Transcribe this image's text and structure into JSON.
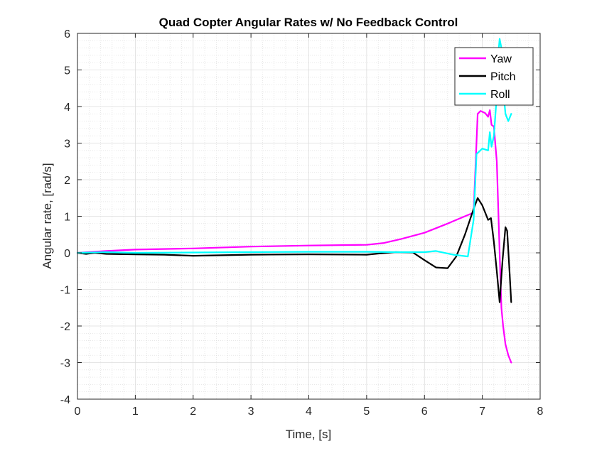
{
  "chart_data": {
    "type": "line",
    "title": "Quad Copter Angular Rates w/ No Feedback Control",
    "xlabel": "Time, [s]",
    "ylabel": "Angular rate, [rad/s]",
    "xlim": [
      0,
      8
    ],
    "ylim": [
      -4,
      6
    ],
    "xticks": [
      0,
      1,
      2,
      3,
      4,
      5,
      6,
      7,
      8
    ],
    "yticks": [
      -4,
      -3,
      -2,
      -1,
      0,
      1,
      2,
      3,
      4,
      5,
      6
    ],
    "grid": true,
    "minor_grid": true,
    "legend_position": "top-right",
    "series": [
      {
        "name": "Yaw",
        "color": "#ff00ff",
        "x": [
          0,
          0.5,
          1,
          2,
          3,
          4,
          5,
          5.3,
          5.6,
          6.0,
          6.4,
          6.7,
          6.85,
          6.92,
          6.97,
          7.05,
          7.1,
          7.13,
          7.16,
          7.2,
          7.25,
          7.3,
          7.33,
          7.36,
          7.4,
          7.45,
          7.5
        ],
        "y": [
          0,
          0.05,
          0.09,
          0.12,
          0.17,
          0.2,
          0.22,
          0.27,
          0.38,
          0.55,
          0.8,
          1.0,
          1.1,
          3.8,
          3.88,
          3.82,
          3.72,
          3.9,
          3.5,
          3.45,
          2.5,
          0.0,
          -1.5,
          -2.0,
          -2.5,
          -2.8,
          -3.0
        ]
      },
      {
        "name": "Pitch",
        "color": "#000000",
        "x": [
          0,
          0.15,
          0.3,
          0.5,
          1,
          1.5,
          2,
          3,
          4,
          5,
          5.2,
          5.5,
          5.8,
          6.0,
          6.2,
          6.4,
          6.55,
          6.7,
          6.85,
          6.92,
          7.0,
          7.1,
          7.15,
          7.2,
          7.25,
          7.3,
          7.35,
          7.4,
          7.43,
          7.47,
          7.5
        ],
        "y": [
          0,
          -0.03,
          0.0,
          -0.03,
          -0.04,
          -0.05,
          -0.08,
          -0.05,
          -0.04,
          -0.05,
          -0.02,
          0.02,
          0.01,
          -0.2,
          -0.4,
          -0.42,
          -0.1,
          0.5,
          1.2,
          1.5,
          1.3,
          0.9,
          0.95,
          0.3,
          -0.5,
          -1.35,
          -0.2,
          0.7,
          0.6,
          -0.5,
          -1.35
        ]
      },
      {
        "name": "Roll",
        "color": "#00ffff",
        "x": [
          0,
          0.5,
          1,
          2,
          3,
          4,
          5,
          5.5,
          6.0,
          6.2,
          6.5,
          6.75,
          6.85,
          6.9,
          7.0,
          7.1,
          7.13,
          7.16,
          7.2,
          7.25,
          7.28,
          7.3,
          7.33,
          7.36,
          7.4,
          7.45,
          7.5
        ],
        "y": [
          0,
          0.02,
          0.0,
          0.01,
          0.02,
          0.03,
          0.03,
          0.02,
          0.02,
          0.05,
          -0.05,
          -0.1,
          0.9,
          2.7,
          2.85,
          2.8,
          3.3,
          2.9,
          3.2,
          4.3,
          5.5,
          5.85,
          5.6,
          4.5,
          3.8,
          3.6,
          3.8
        ]
      }
    ]
  }
}
